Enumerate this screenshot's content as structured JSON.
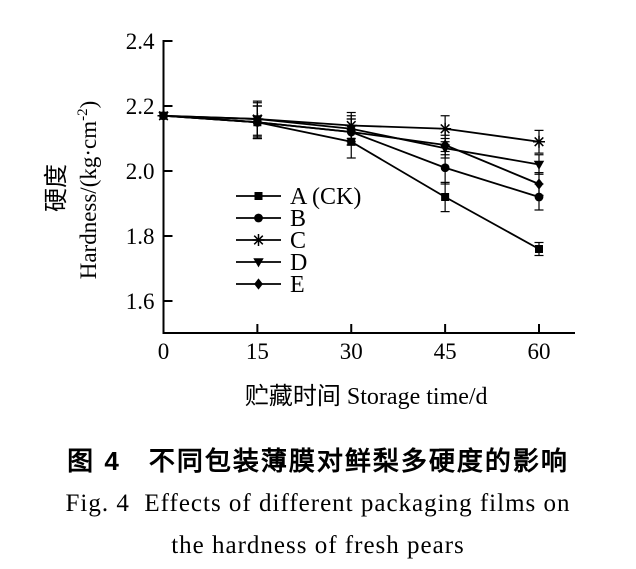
{
  "figure": {
    "caption_zh": "图 4　不同包装薄膜对鲜梨多硬度的影响",
    "caption_en_line1": "Fig. 4  Effects of different packaging films on",
    "caption_en_line2": "the hardness of fresh pears"
  },
  "chart_data": {
    "type": "line",
    "title": "",
    "xlabel": "贮藏时间 Storage time/d",
    "ylabel_zh": "硬度",
    "ylabel_en": "Hardness/(kg·cm⁻²)",
    "x": [
      0,
      15,
      30,
      45,
      60
    ],
    "xticks": [
      "0",
      "15",
      "30",
      "45",
      "60"
    ],
    "yticks": [
      1.6,
      1.8,
      2.0,
      2.2,
      2.4
    ],
    "ylim": [
      1.47,
      2.4
    ],
    "xlim": [
      0,
      66
    ],
    "grid": false,
    "legend_position": "inside-left-middle",
    "line_color": "#000000",
    "marker_color": "#000000",
    "series": [
      {
        "name": "A (CK)",
        "marker": "filled-square",
        "values": [
          2.17,
          2.15,
          2.09,
          1.92,
          1.76
        ],
        "err": [
          0,
          0.05,
          0.05,
          0.045,
          0.02
        ]
      },
      {
        "name": "B",
        "marker": "filled-circle",
        "values": [
          2.17,
          2.15,
          2.12,
          2.01,
          1.92
        ],
        "err": [
          0,
          0.05,
          0.04,
          0.05,
          0.04
        ]
      },
      {
        "name": "C",
        "marker": "asterisk",
        "values": [
          2.17,
          2.16,
          2.14,
          2.13,
          2.09
        ],
        "err": [
          0,
          0.055,
          0.04,
          0.04,
          0.035
        ]
      },
      {
        "name": "D",
        "marker": "filled-triangle-down",
        "values": [
          2.17,
          2.16,
          2.13,
          2.07,
          2.02
        ],
        "err": [
          0,
          0.05,
          0.04,
          0.03,
          0.03
        ]
      },
      {
        "name": "E",
        "marker": "filled-diamond",
        "values": [
          2.17,
          2.15,
          2.12,
          2.08,
          1.96
        ],
        "err": [
          0,
          0.05,
          0.04,
          0.03,
          0.035
        ]
      }
    ]
  }
}
